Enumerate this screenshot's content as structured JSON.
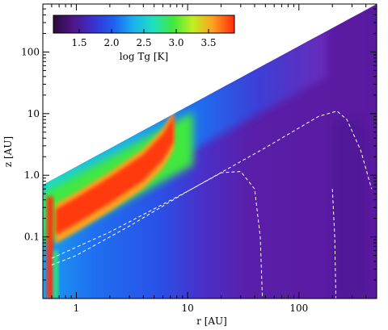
{
  "chart_data": {
    "type": "heatmap",
    "xlabel": "r [AU]",
    "ylabel": "z [AU]",
    "xscale": "log",
    "yscale": "log",
    "xlim": [
      0.5,
      500
    ],
    "ylim": [
      0.01,
      600
    ],
    "xticks": [
      {
        "v": 1,
        "label": "1"
      },
      {
        "v": 10,
        "label": "10"
      },
      {
        "v": 100,
        "label": "100"
      }
    ],
    "yticks": [
      {
        "v": 0.1,
        "label": "0.1"
      },
      {
        "v": 1,
        "label": "1.0"
      },
      {
        "v": 10,
        "label": "10"
      },
      {
        "v": 100,
        "label": "100"
      }
    ],
    "colorbar": {
      "label": "log Tg [K]",
      "range": [
        1.1,
        3.9
      ],
      "ticks": [
        {
          "v": 1.5,
          "label": "1.5"
        },
        {
          "v": 2.0,
          "label": "2.0"
        },
        {
          "v": 2.5,
          "label": "2.5"
        },
        {
          "v": 3.0,
          "label": "3.0"
        },
        {
          "v": 3.5,
          "label": "3.5"
        }
      ],
      "colormap": [
        "#2a0b3a",
        "#4f1688",
        "#3b2fd0",
        "#1f5ef0",
        "#1ab0f0",
        "#20e0c0",
        "#40e840",
        "#c0f020",
        "#ffa020",
        "#ff2a0a"
      ],
      "placement": "top-left"
    },
    "surface": {
      "z_over_r_at_0_5AU": 1.4,
      "z_at_500AU": 600
    },
    "contours": [
      {
        "style": "dashed",
        "color": "#ffffff",
        "points": [
          [
            0.6,
            0.045
          ],
          [
            2,
            0.12
          ],
          [
            10,
            0.55
          ],
          [
            50,
            2.8
          ],
          [
            150,
            9
          ],
          [
            220,
            11
          ],
          [
            270,
            8
          ],
          [
            360,
            2.5
          ],
          [
            450,
            0.6
          ]
        ]
      },
      {
        "style": "dashed",
        "color": "#ffffff",
        "points": [
          [
            0.6,
            0.035
          ],
          [
            1,
            0.05
          ],
          [
            3,
            0.15
          ],
          [
            10,
            0.55
          ],
          [
            20,
            1.1
          ],
          [
            30,
            1.15
          ],
          [
            40,
            0.6
          ],
          [
            45,
            0.1
          ],
          [
            47,
            0.01
          ]
        ]
      },
      {
        "style": "dashed",
        "color": "#ffffff",
        "points": [
          [
            200,
            0.6
          ],
          [
            210,
            0.1
          ],
          [
            215,
            0.01
          ]
        ]
      }
    ],
    "hot_layer": {
      "log_Tg": 3.7,
      "path": [
        [
          0.65,
          0.18
        ],
        [
          1,
          0.28
        ],
        [
          2,
          0.6
        ],
        [
          4,
          1.4
        ],
        [
          6,
          3.0
        ],
        [
          7.5,
          6.0
        ]
      ]
    },
    "inner_rim": {
      "r": 0.6,
      "log_Tg": 3.8
    }
  }
}
